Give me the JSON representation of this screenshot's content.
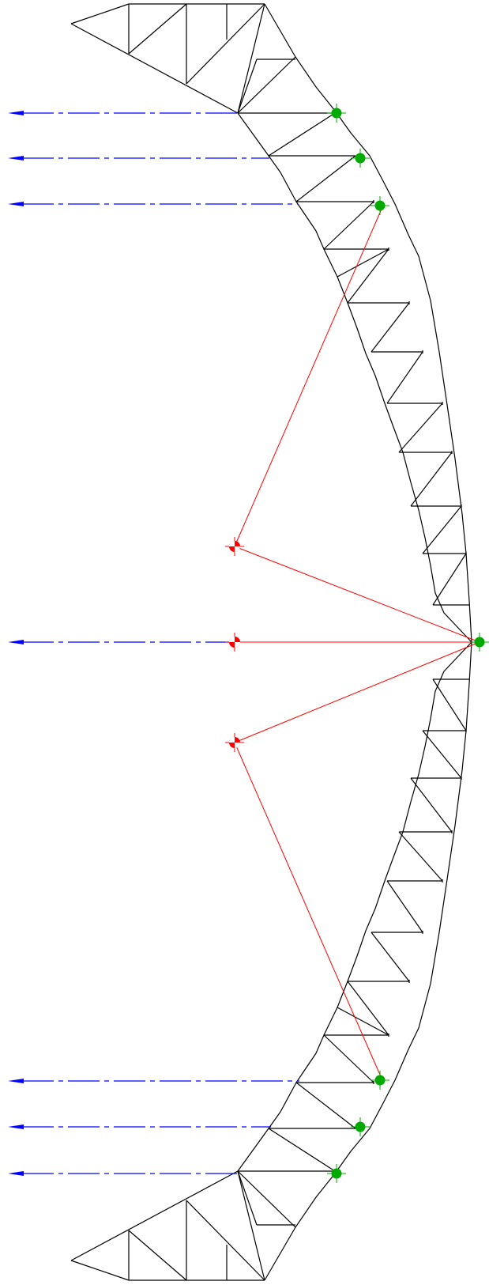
{
  "colors": {
    "truss": "#000000",
    "load_arrow": "#0000ff",
    "support_line": "#ff0000",
    "support_marker": "#ff0000",
    "load_node": "#00aa00",
    "background": "#ffffff"
  },
  "icons": {
    "load_node": "green-node-marker-icon",
    "support_node": "red-support-marker-icon",
    "load_arrow": "arrow-left-icon"
  },
  "counts": {
    "horizontal_loads": 7,
    "support_points": 3,
    "load_nodes": 7
  }
}
